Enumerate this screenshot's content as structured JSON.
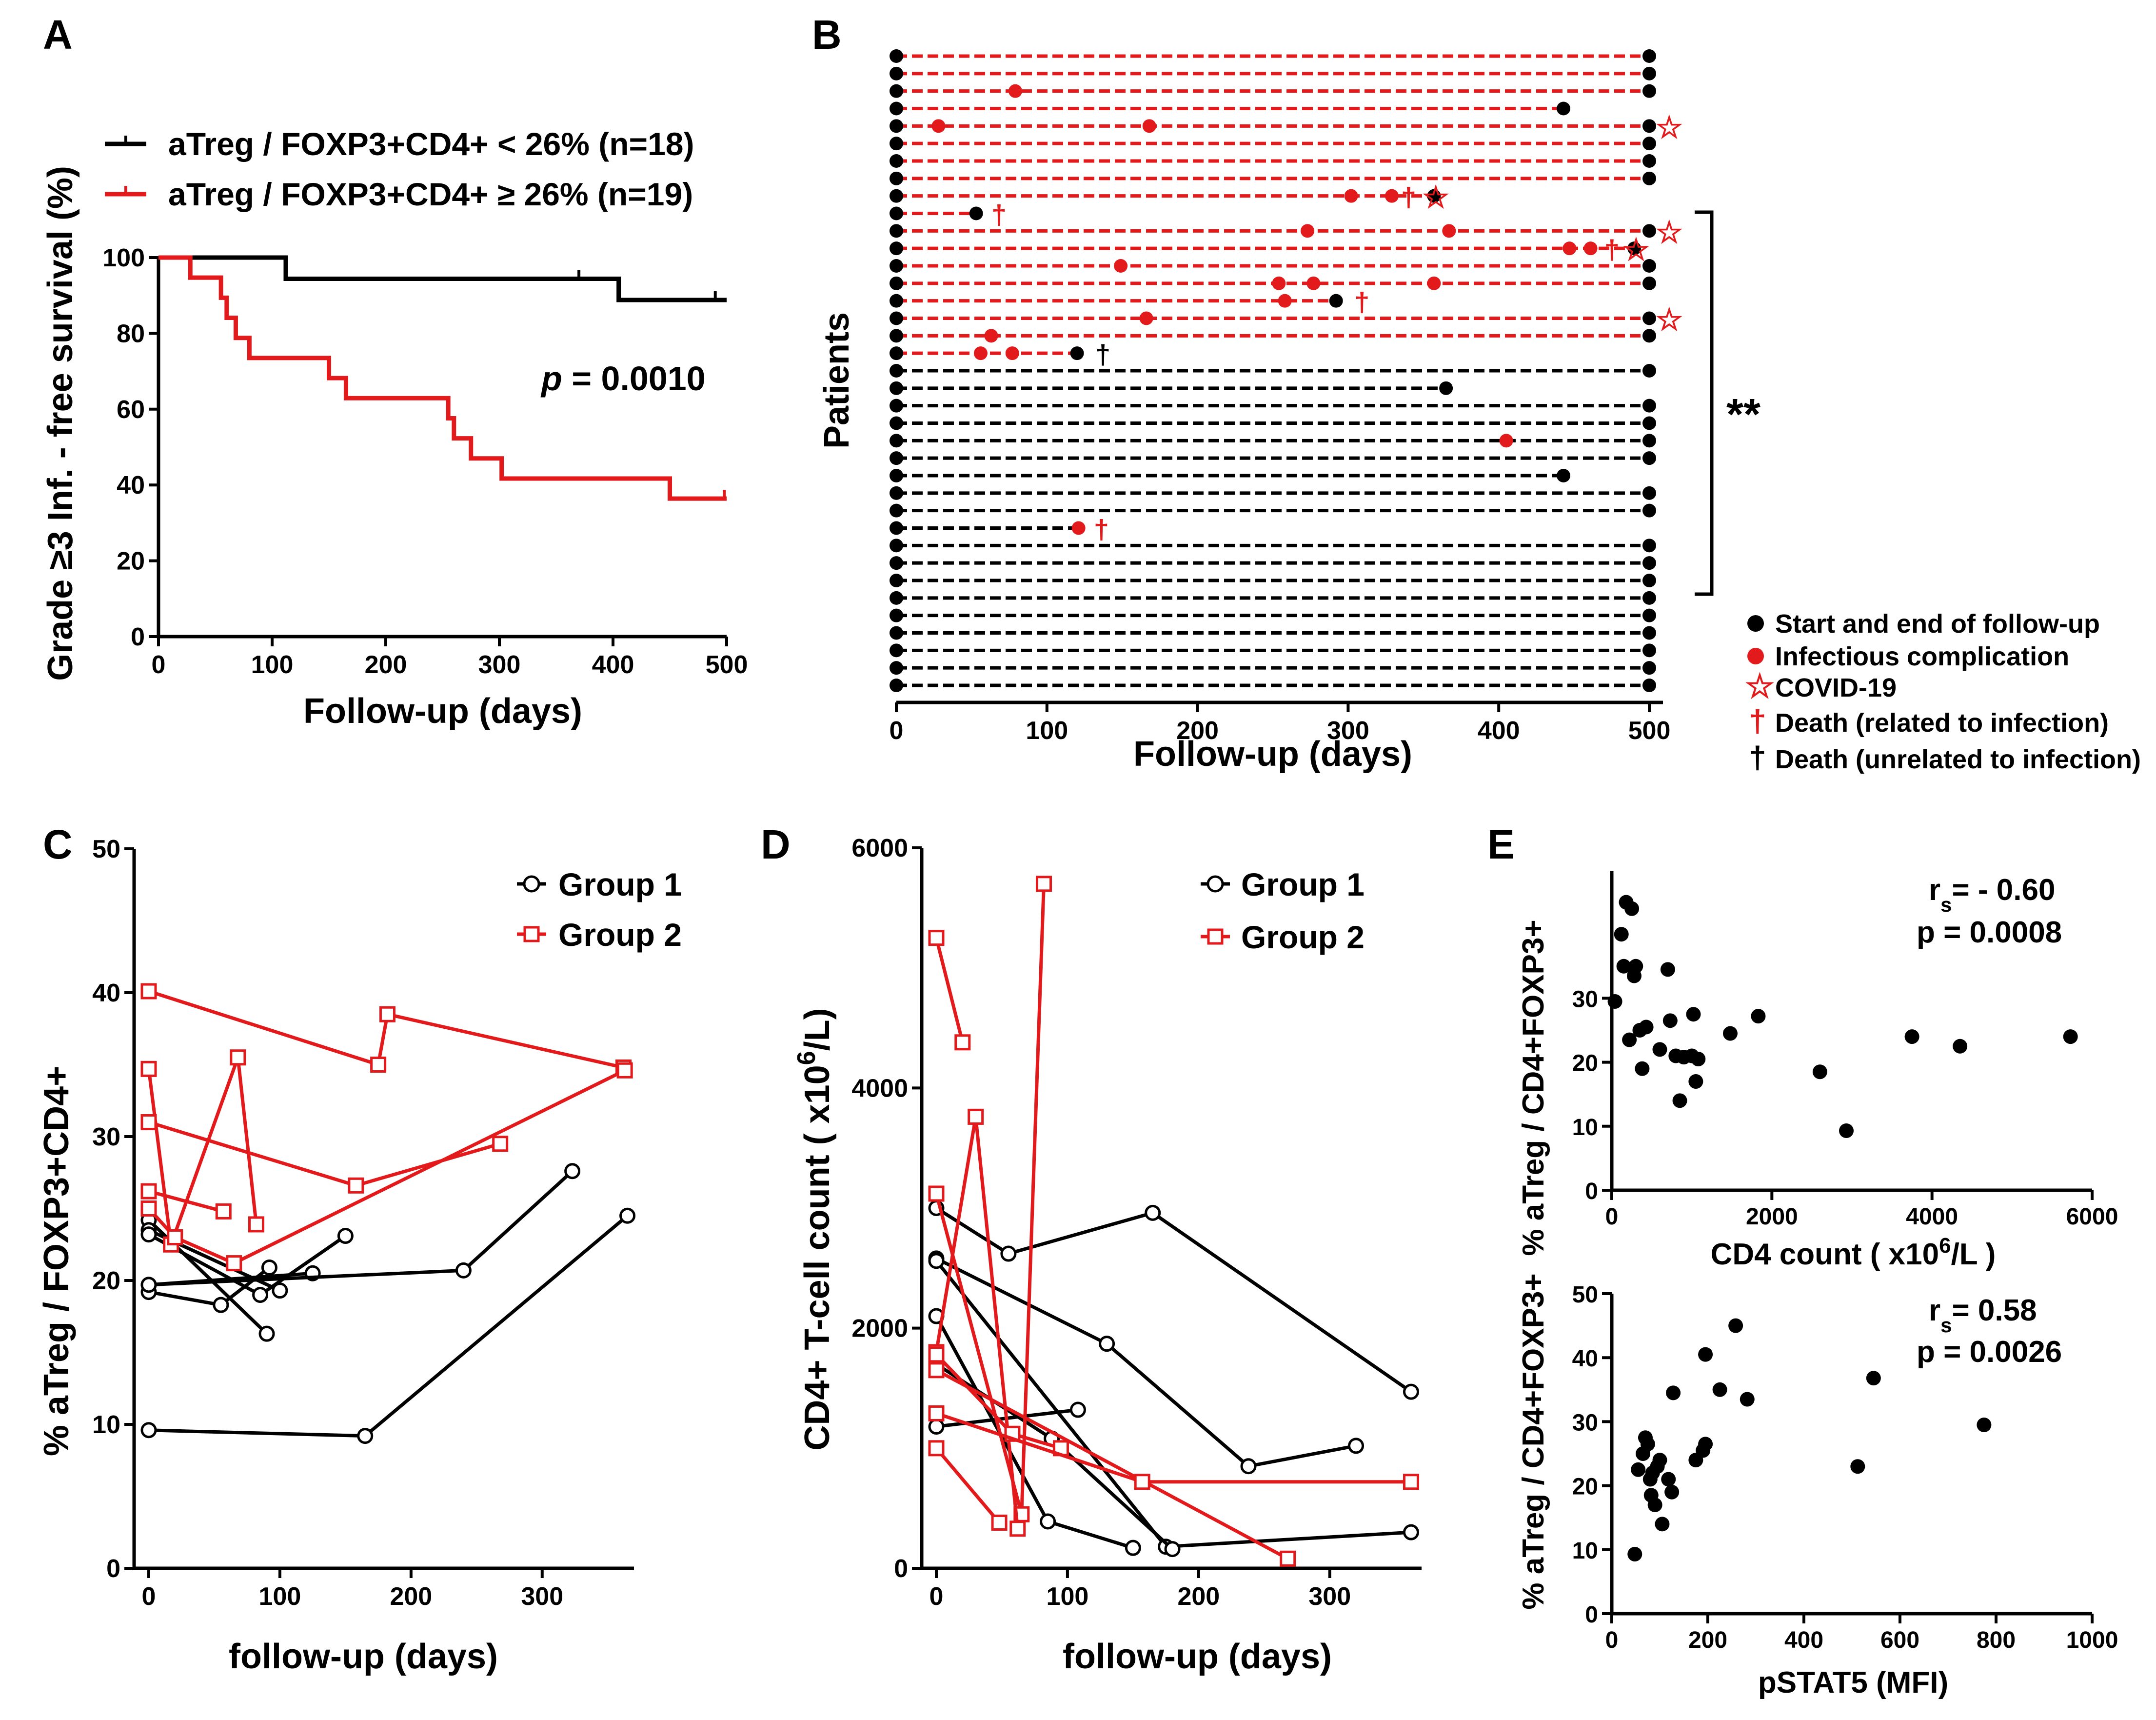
{
  "colors": {
    "black": "#000000",
    "red": "#e31a1c"
  },
  "panel_labels": [
    "A",
    "B",
    "C",
    "D",
    "E"
  ],
  "chart_data": [
    {
      "id": "A",
      "type": "line",
      "subtype": "kaplan-meier",
      "xlabel": "Follow-up (days)",
      "ylabel": "Grade ≥3 Inf. - free survival (%)",
      "xlim": [
        0,
        500
      ],
      "ylim": [
        0,
        100
      ],
      "xticks": [
        "0",
        "100",
        "200",
        "300",
        "400",
        "500"
      ],
      "yticks": [
        "0",
        "20",
        "40",
        "60",
        "80",
        "100"
      ],
      "annotation": {
        "italic": "p",
        "text": " = 0.0010"
      },
      "series": [
        {
          "name": "aTreg / FOXP3+CD4+ < 26% (n=18)",
          "color": "#000000",
          "steps": [
            [
              0,
              100
            ],
            [
              112,
              100
            ],
            [
              112,
              94.4
            ],
            [
              405,
              94.4
            ],
            [
              405,
              88.8
            ],
            [
              500,
              88.8
            ]
          ],
          "censor": [
            [
              370,
              94.4
            ],
            [
              490,
              88.8
            ]
          ]
        },
        {
          "name": "aTreg / FOXP3+CD4+ ≥ 26% (n=19)",
          "color": "#e31a1c",
          "steps": [
            [
              0,
              100
            ],
            [
              28,
              100
            ],
            [
              28,
              94.7
            ],
            [
              55,
              94.7
            ],
            [
              55,
              89.4
            ],
            [
              60,
              89.4
            ],
            [
              60,
              84.1
            ],
            [
              68,
              84.1
            ],
            [
              68,
              78.8
            ],
            [
              80,
              78.8
            ],
            [
              80,
              73.5
            ],
            [
              150,
              73.5
            ],
            [
              150,
              68.2
            ],
            [
              165,
              68.2
            ],
            [
              165,
              62.9
            ],
            [
              255,
              62.9
            ],
            [
              255,
              57.6
            ],
            [
              260,
              57.6
            ],
            [
              260,
              52.3
            ],
            [
              275,
              52.3
            ],
            [
              275,
              47.0
            ],
            [
              302,
              47.0
            ],
            [
              302,
              41.7
            ],
            [
              450,
              41.7
            ],
            [
              450,
              36.4
            ],
            [
              500,
              36.4
            ]
          ],
          "censor": [
            [
              498,
              36.4
            ]
          ]
        }
      ]
    },
    {
      "id": "B",
      "type": "scatter",
      "subtype": "swimmer",
      "xlabel": "Follow-up (days)",
      "ylabel": "Patients",
      "xlim": [
        0,
        500
      ],
      "xticks": [
        "0",
        "100",
        "200",
        "300",
        "400",
        "500"
      ],
      "significance": "**",
      "legend": [
        "Start and end of follow-up",
        "Infectious complication",
        "COVID-19",
        "Death (related to infection)",
        "Death (unrelated to infection)"
      ],
      "symbols": {
        "circle": "●",
        "star": "☆",
        "dagger": "†"
      },
      "patients": [
        {
          "group": 2,
          "end": 500,
          "inf": []
        },
        {
          "group": 2,
          "end": 500,
          "inf": []
        },
        {
          "group": 2,
          "end": 500,
          "inf": [
            79
          ]
        },
        {
          "group": 2,
          "end": 443,
          "inf": []
        },
        {
          "group": 2,
          "end": 500,
          "inf": [
            28,
            168
          ],
          "covid": 512
        },
        {
          "group": 2,
          "end": 500,
          "inf": []
        },
        {
          "group": 2,
          "end": 500,
          "inf": []
        },
        {
          "group": 2,
          "end": 500,
          "inf": []
        },
        {
          "group": 2,
          "end": 357,
          "inf": [
            302,
            329
          ],
          "death": 339,
          "covid": 357
        },
        {
          "group": 2,
          "end": 53,
          "inf": [],
          "death": 67
        },
        {
          "group": 2,
          "end": 500,
          "inf": [
            273,
            367
          ],
          "covid": 512
        },
        {
          "group": 2,
          "end": 490,
          "inf": [
            447,
            461
          ],
          "death": 474,
          "covid": 490
        },
        {
          "group": 2,
          "end": 500,
          "inf": [
            149
          ]
        },
        {
          "group": 2,
          "end": 500,
          "inf": [
            254,
            277,
            357
          ]
        },
        {
          "group": 2,
          "end": 292,
          "inf": [
            258
          ],
          "death": 308
        },
        {
          "group": 2,
          "end": 500,
          "inf": [
            166
          ],
          "covid": 512
        },
        {
          "group": 2,
          "end": 500,
          "inf": [
            63
          ]
        },
        {
          "group": 2,
          "end": 120,
          "inf": [
            56,
            77
          ],
          "death_unrel": 136,
          "endcolor": "black"
        },
        {
          "group": 1,
          "end": 500,
          "inf": []
        },
        {
          "group": 1,
          "end": 365,
          "inf": []
        },
        {
          "group": 1,
          "end": 500,
          "inf": []
        },
        {
          "group": 1,
          "end": 500,
          "inf": []
        },
        {
          "group": 1,
          "end": 500,
          "inf": [
            405
          ]
        },
        {
          "group": 1,
          "end": 500,
          "inf": []
        },
        {
          "group": 1,
          "end": 443,
          "inf": []
        },
        {
          "group": 1,
          "end": 500,
          "inf": []
        },
        {
          "group": 1,
          "end": 500,
          "inf": []
        },
        {
          "group": 1,
          "end": 121,
          "inf": [],
          "death": 135,
          "endcolor": "red"
        },
        {
          "group": 1,
          "end": 500,
          "inf": []
        },
        {
          "group": 1,
          "end": 500,
          "inf": []
        },
        {
          "group": 1,
          "end": 500,
          "inf": []
        },
        {
          "group": 1,
          "end": 500,
          "inf": []
        },
        {
          "group": 1,
          "end": 500,
          "inf": []
        },
        {
          "group": 1,
          "end": 500,
          "inf": []
        },
        {
          "group": 1,
          "end": 500,
          "inf": []
        },
        {
          "group": 1,
          "end": 500,
          "inf": []
        },
        {
          "group": 1,
          "end": 500,
          "inf": []
        }
      ]
    },
    {
      "id": "C",
      "type": "line",
      "subtype": "spaghetti",
      "xlabel": "follow-up (days)",
      "ylabel": "% aTreg / FOXP3+CD4+",
      "xlim": [
        0,
        370
      ],
      "ylim": [
        0,
        50
      ],
      "xticks": [
        "0",
        "100",
        "200",
        "300"
      ],
      "yticks": [
        "0",
        "10",
        "20",
        "30",
        "40",
        "50"
      ],
      "legend": [
        "Group 1",
        "Group 2"
      ],
      "series": [
        {
          "group": 1,
          "pts": [
            [
              0,
              9.6
            ],
            [
              165,
              9.2
            ],
            [
              365,
              24.5
            ]
          ]
        },
        {
          "group": 1,
          "pts": [
            [
              0,
              24.2
            ],
            [
              90,
              16.3
            ]
          ]
        },
        {
          "group": 1,
          "pts": [
            [
              0,
              23.5
            ],
            [
              100,
              19.3
            ]
          ]
        },
        {
          "group": 1,
          "pts": [
            [
              0,
              19.2
            ],
            [
              55,
              18.3
            ],
            [
              92,
              20.9
            ]
          ]
        },
        {
          "group": 1,
          "pts": [
            [
              0,
              19.7
            ],
            [
              125,
              20.5
            ]
          ]
        },
        {
          "group": 1,
          "pts": [
            [
              0,
              19.7
            ],
            [
              240,
              20.7
            ],
            [
              323,
              27.6
            ]
          ]
        },
        {
          "group": 1,
          "pts": [
            [
              0,
              23.2
            ],
            [
              85,
              19.0
            ],
            [
              150,
              23.1
            ]
          ]
        },
        {
          "group": 2,
          "pts": [
            [
              0,
              40.1
            ],
            [
              175,
              35.0
            ],
            [
              182,
              38.5
            ],
            [
              362,
              34.8
            ]
          ]
        },
        {
          "group": 2,
          "pts": [
            [
              0,
              34.7
            ],
            [
              17,
              22.5
            ],
            [
              68,
              35.5
            ],
            [
              82,
              23.9
            ]
          ]
        },
        {
          "group": 2,
          "pts": [
            [
              0,
              31.0
            ],
            [
              158,
              26.6
            ],
            [
              268,
              29.5
            ]
          ]
        },
        {
          "group": 2,
          "pts": [
            [
              0,
              26.2
            ],
            [
              57,
              24.8
            ]
          ]
        },
        {
          "group": 2,
          "pts": [
            [
              0,
              25.0
            ],
            [
              20,
              23.0
            ],
            [
              65,
              21.2
            ],
            [
              363,
              34.6
            ]
          ]
        }
      ]
    },
    {
      "id": "D",
      "type": "line",
      "subtype": "spaghetti",
      "xlabel": "follow-up (days)",
      "ylabel_main": "CD4+ T-cell count ( x10",
      "ylabel_sup": "6",
      "ylabel_tail": "/L)",
      "xlim": [
        0,
        370
      ],
      "ylim": [
        0,
        6000
      ],
      "xticks": [
        "0",
        "100",
        "200",
        "300"
      ],
      "yticks": [
        "0",
        "2000",
        "4000",
        "6000"
      ],
      "legend": [
        "Group 1",
        "Group 2"
      ],
      "series": [
        {
          "group": 1,
          "pts": [
            [
              0,
              3000
            ],
            [
              55,
              2620
            ],
            [
              165,
              2960
            ],
            [
              362,
              1470
            ]
          ]
        },
        {
          "group": 1,
          "pts": [
            [
              0,
              2580
            ],
            [
              130,
              1870
            ],
            [
              238,
              850
            ],
            [
              320,
              1020
            ]
          ]
        },
        {
          "group": 1,
          "pts": [
            [
              0,
              2560
            ],
            [
              175,
              180
            ],
            [
              362,
              300
            ]
          ]
        },
        {
          "group": 1,
          "pts": [
            [
              0,
              2100
            ],
            [
              85,
              390
            ],
            [
              150,
              170
            ]
          ]
        },
        {
          "group": 1,
          "pts": [
            [
              0,
              1700
            ],
            [
              88,
              1080
            ],
            [
              180,
              160
            ]
          ]
        },
        {
          "group": 1,
          "pts": [
            [
              0,
              1180
            ],
            [
              108,
              1320
            ]
          ]
        },
        {
          "group": 2,
          "pts": [
            [
              0,
              5250
            ],
            [
              20,
              4380
            ]
          ]
        },
        {
          "group": 2,
          "pts": [
            [
              0,
              3120
            ],
            [
              65,
              450
            ],
            [
              82,
              5700
            ]
          ]
        },
        {
          "group": 2,
          "pts": [
            [
              0,
              1800
            ],
            [
              30,
              3760
            ],
            [
              62,
              330
            ]
          ]
        },
        {
          "group": 2,
          "pts": [
            [
              0,
              1780
            ],
            [
              58,
              1120
            ],
            [
              95,
              1000
            ]
          ]
        },
        {
          "group": 2,
          "pts": [
            [
              0,
              1650
            ],
            [
              268,
              80
            ]
          ]
        },
        {
          "group": 2,
          "pts": [
            [
              0,
              1290
            ],
            [
              157,
              720
            ],
            [
              362,
              720
            ]
          ]
        },
        {
          "group": 2,
          "pts": [
            [
              0,
              1000
            ],
            [
              48,
              380
            ]
          ]
        }
      ]
    },
    {
      "id": "E-top",
      "type": "scatter",
      "xlabel": "CD4 count ( x10",
      "xlabel_sup": "6",
      "xlabel_tail": "/L )",
      "ylabel": "% aTreg / CD4+FOXP3+",
      "xlim": [
        0,
        6000
      ],
      "ylim": [
        0,
        50
      ],
      "xticks": [
        "0",
        "2000",
        "4000",
        "6000"
      ],
      "yticks": [
        "0",
        "10",
        "20",
        "30"
      ],
      "annotation_rs": "= - 0.60",
      "annotation_p": "p = 0.0008",
      "points": [
        [
          40,
          29.5
        ],
        [
          120,
          40
        ],
        [
          150,
          35
        ],
        [
          180,
          45
        ],
        [
          220,
          23.5
        ],
        [
          250,
          44
        ],
        [
          280,
          33.5
        ],
        [
          300,
          35
        ],
        [
          350,
          25
        ],
        [
          380,
          19
        ],
        [
          430,
          25.5
        ],
        [
          600,
          22
        ],
        [
          700,
          34.5
        ],
        [
          730,
          26.5
        ],
        [
          800,
          21
        ],
        [
          850,
          14
        ],
        [
          900,
          20.8
        ],
        [
          1000,
          21
        ],
        [
          1020,
          27.5
        ],
        [
          1050,
          17
        ],
        [
          1080,
          20.5
        ],
        [
          1480,
          24.5
        ],
        [
          1830,
          27.2
        ],
        [
          2600,
          18.5
        ],
        [
          2930,
          9.3
        ],
        [
          3750,
          24
        ],
        [
          4350,
          22.5
        ],
        [
          5730,
          24
        ]
      ]
    },
    {
      "id": "E-bottom",
      "type": "scatter",
      "xlabel": "pSTAT5 (MFI)",
      "ylabel": "% aTreg /  CD4+FOXP3+",
      "xlim": [
        0,
        1000
      ],
      "ylim": [
        0,
        50
      ],
      "xticks": [
        "0",
        "200",
        "400",
        "600",
        "800",
        "1000"
      ],
      "yticks": [
        "0",
        "10",
        "20",
        "30",
        "40",
        "50"
      ],
      "annotation_rs": "= 0.58",
      "annotation_p": "p = 0.0026",
      "points": [
        [
          48,
          9.3
        ],
        [
          55,
          22.5
        ],
        [
          65,
          25
        ],
        [
          70,
          27.5
        ],
        [
          75,
          26.5
        ],
        [
          80,
          21
        ],
        [
          82,
          18.5
        ],
        [
          85,
          22
        ],
        [
          90,
          17
        ],
        [
          95,
          23
        ],
        [
          100,
          24
        ],
        [
          105,
          14
        ],
        [
          118,
          21
        ],
        [
          125,
          19
        ],
        [
          128,
          34.5
        ],
        [
          175,
          24
        ],
        [
          190,
          25.5
        ],
        [
          195,
          26.5
        ],
        [
          195,
          40.5
        ],
        [
          225,
          35
        ],
        [
          258,
          45
        ],
        [
          282,
          33.5
        ],
        [
          512,
          23
        ],
        [
          545,
          36.8
        ],
        [
          775,
          29.5
        ]
      ]
    }
  ]
}
